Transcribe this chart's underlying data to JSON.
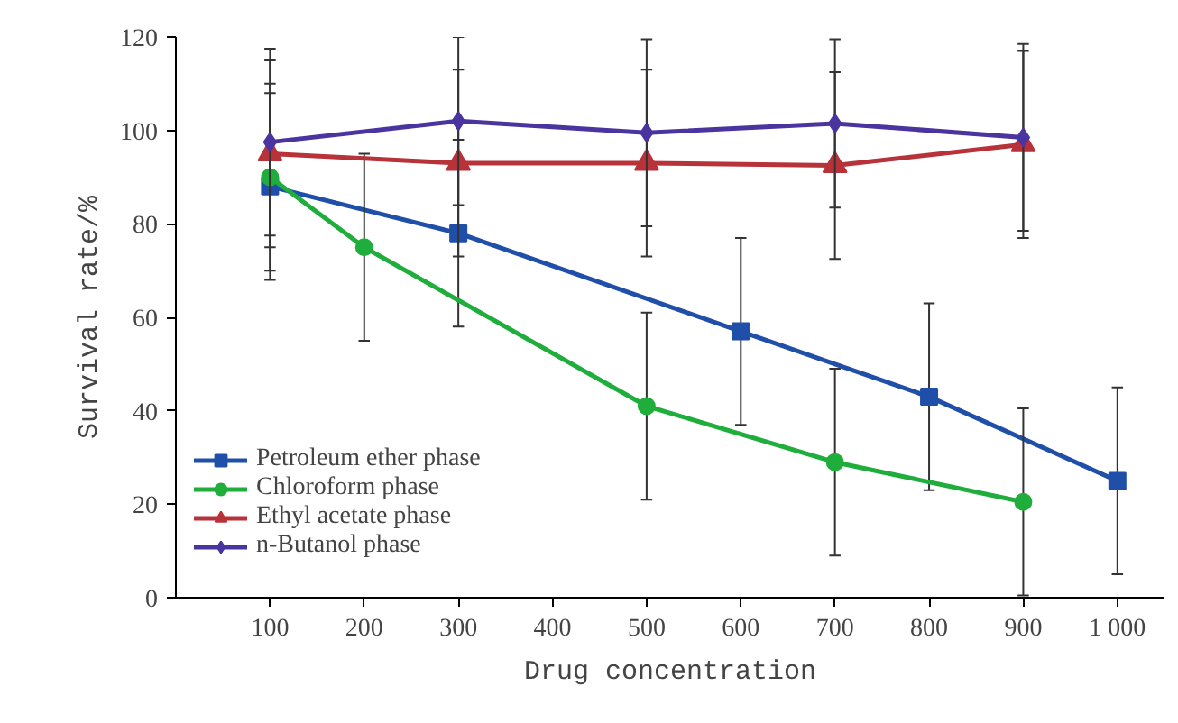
{
  "chart_data": {
    "type": "line",
    "xlabel": "Drug concentration",
    "ylabel": "Survival rate/%",
    "xlim": [
      0,
      1050
    ],
    "xticks": [
      100,
      200,
      300,
      400,
      500,
      600,
      700,
      800,
      900,
      {
        "value": 1000,
        "label": "1 000"
      }
    ],
    "ylim": [
      0,
      120
    ],
    "yticks": [
      0,
      20,
      40,
      60,
      80,
      100,
      120
    ],
    "grid": false,
    "legend": "bottom left",
    "line_style": "solid",
    "series": [
      {
        "name": "Petroleum ether phase",
        "color": "#1f4fa8",
        "marker": "square",
        "x": [
          100,
          300,
          600,
          800,
          1000
        ],
        "values": [
          88,
          78,
          57,
          43,
          25
        ],
        "errors": [
          20,
          20,
          20,
          20,
          20
        ]
      },
      {
        "name": "Chloroform phase",
        "color": "#1fae3c",
        "marker": "circle",
        "x": [
          100,
          200,
          500,
          700,
          900
        ],
        "values": [
          90,
          75,
          41,
          29,
          20.5
        ],
        "errors": [
          20,
          20,
          20,
          20,
          20
        ]
      },
      {
        "name": "Ethyl acetate phase",
        "color": "#b8323a",
        "marker": "triangle",
        "x": [
          100,
          300,
          500,
          700,
          900
        ],
        "values": [
          95,
          93,
          93,
          92.5,
          97
        ],
        "errors": [
          20,
          20,
          20,
          20,
          20
        ]
      },
      {
        "name": "n-Butanol phase",
        "color": "#4a35a0",
        "marker": "diamond",
        "x": [
          100,
          300,
          500,
          700,
          900
        ],
        "values": [
          97.5,
          102,
          99.5,
          101.5,
          98.5
        ],
        "errors": [
          20,
          18,
          20,
          18,
          20
        ]
      }
    ]
  }
}
